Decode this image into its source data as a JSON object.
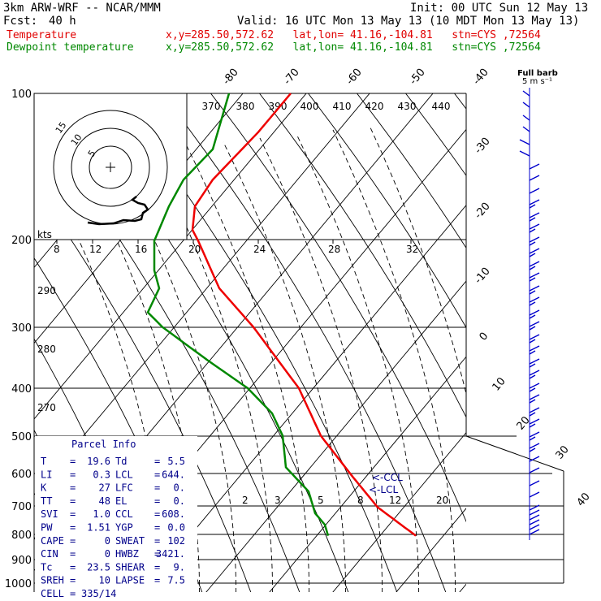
{
  "header": {
    "model": "3km ARW-WRF -- NCAR/MMM",
    "init": "Init: 00 UTC Sun 12 May 13",
    "fcst_label": "Fcst:",
    "fcst_value": "40 h",
    "valid": "Valid: 16 UTC Mon 13 May 13 (10 MDT Mon 13 May 13)",
    "temp_label": "Temperature",
    "temp_info": "x,y=285.50,572.62   lat,lon= 41.16,-104.81   stn=CYS ,72564",
    "dew_label": "Dewpoint temperature",
    "dew_info": "x,y=285.50,572.62   lat,lon= 41.16,-104.81   stn=CYS ,72564"
  },
  "colors": {
    "temperature": "#ee0000",
    "dewpoint": "#008800",
    "wind": "#0000cc",
    "parcel_text": "#00008b"
  },
  "chart_data": {
    "type": "line",
    "title": "Skew-T",
    "pressure_levels": [
      "100",
      "200",
      "300",
      "400",
      "500",
      "600",
      "700",
      "800",
      "900",
      "1000"
    ],
    "skew_isotherm_labels": [
      "-80",
      "-70",
      "-60",
      "-50",
      "-40",
      "-30",
      "-20",
      "-10",
      "0",
      "10",
      "20",
      "30",
      "40"
    ],
    "theta_labels": [
      "370",
      "380",
      "390",
      "400",
      "410",
      "420",
      "430",
      "440"
    ],
    "hodograph_rings": [
      "15",
      "10",
      "5"
    ],
    "hodograph_speed_labels": [
      "8",
      "12",
      "16",
      "20",
      "24",
      "28",
      "32"
    ],
    "hodograph_kts_label": "kts",
    "theta_e_labels": [
      "290",
      "280",
      "270"
    ],
    "mixing_ratio_labels": [
      "2",
      "3",
      "5",
      "8",
      "12",
      "20"
    ],
    "ccl_label": "<-CCL",
    "lcl_label": "<-LCL",
    "wind_title": "Full barb",
    "wind_units": "5 m s⁻¹",
    "series": [
      {
        "name": "Temperature",
        "values": []
      },
      {
        "name": "Dewpoint temperature",
        "values": []
      }
    ]
  },
  "parcel": {
    "title": "Parcel Info",
    "rows": [
      {
        "l1": "T",
        "v1": "19.6",
        "l2": "Td",
        "v2": "5.5"
      },
      {
        "l1": "LI",
        "v1": "0.3",
        "l2": "LCL",
        "v2": "644."
      },
      {
        "l1": "K",
        "v1": "27",
        "l2": "LFC",
        "v2": "0."
      },
      {
        "l1": "TT",
        "v1": "48",
        "l2": "EL",
        "v2": "0."
      },
      {
        "l1": "SVI",
        "v1": "1.0",
        "l2": "CCL",
        "v2": "608."
      },
      {
        "l1": "PW",
        "v1": "1.51",
        "l2": "YGP",
        "v2": "0.0"
      },
      {
        "l1": "CAPE",
        "v1": "0",
        "l2": "SWEAT",
        "v2": "102"
      },
      {
        "l1": "CIN",
        "v1": "0",
        "l2": "HWBZ",
        "v2": "3421."
      },
      {
        "l1": "Tc",
        "v1": "23.5",
        "l2": "SHEAR",
        "v2": "9."
      },
      {
        "l1": "SREH",
        "v1": "10",
        "l2": "LAPSE",
        "v2": "7.5"
      }
    ],
    "cell_label": "CELL",
    "cell_value": "335/14"
  }
}
